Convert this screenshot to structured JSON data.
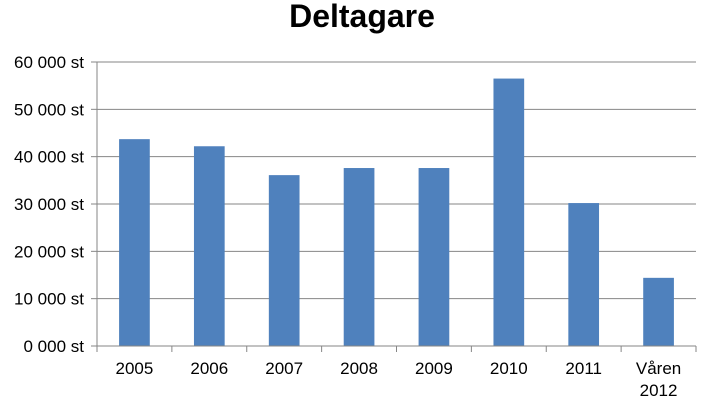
{
  "chart_data": {
    "type": "bar",
    "title": "Deltagare",
    "categories": [
      "2005",
      "2006",
      "2007",
      "2008",
      "2009",
      "2010",
      "2011",
      "Våren 2012"
    ],
    "category_lines": [
      [
        "2005"
      ],
      [
        "2006"
      ],
      [
        "2007"
      ],
      [
        "2008"
      ],
      [
        "2009"
      ],
      [
        "2010"
      ],
      [
        "2011"
      ],
      [
        "Våren",
        "2012"
      ]
    ],
    "values": [
      43700,
      42200,
      36100,
      37600,
      37600,
      56500,
      30200,
      14400
    ],
    "xlabel": "",
    "ylabel": "",
    "ylim": [
      0,
      60000
    ],
    "y_ticks": [
      0,
      10000,
      20000,
      30000,
      40000,
      50000,
      60000
    ],
    "y_tick_labels": [
      "0 000 st",
      "10 000 st",
      "20 000 st",
      "30 000 st",
      "40 000 st",
      "50 000 st",
      "60 000 st"
    ],
    "grid": true,
    "legend": "none",
    "bar_color": "#4f81bd",
    "grid_color": "#868686"
  }
}
